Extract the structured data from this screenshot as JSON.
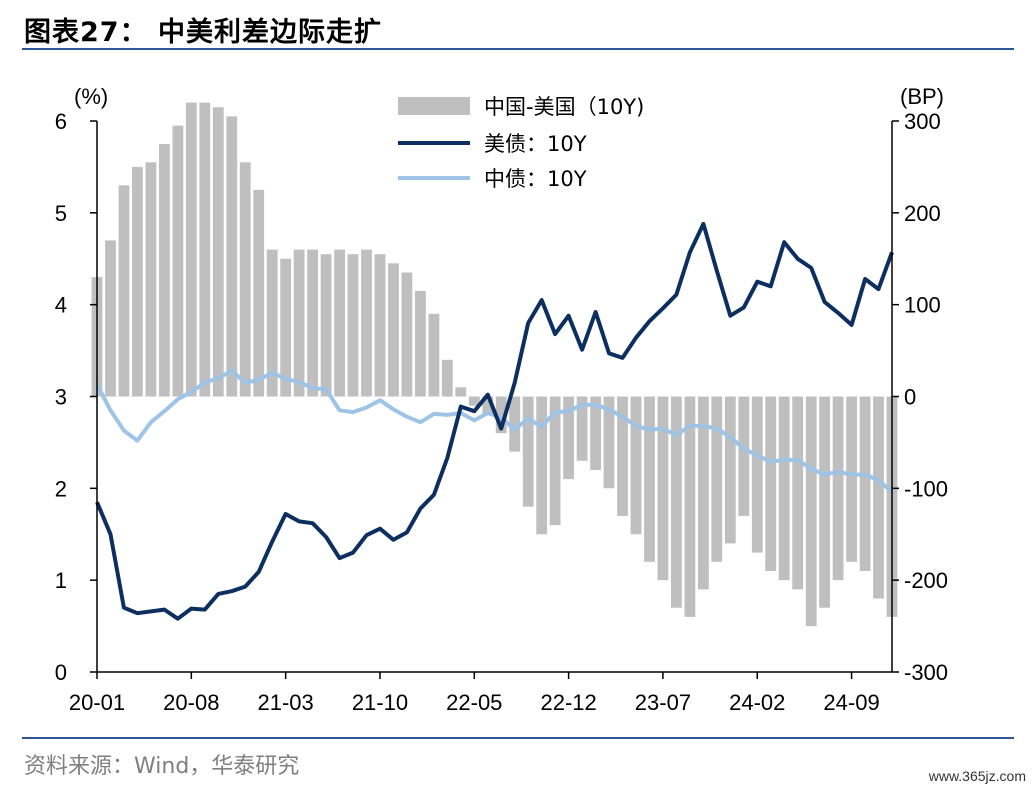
{
  "header": {
    "title": "图表27：   中美利差边际走扩"
  },
  "footer": {
    "source": "资料来源：Wind，华泰研究",
    "watermark": "www.365jz.com"
  },
  "chart_data": {
    "type": "line",
    "left_axis": {
      "label": "(%)",
      "ylim": [
        0,
        6
      ],
      "ticks": [
        "0",
        "1",
        "2",
        "3",
        "4",
        "5",
        "6"
      ]
    },
    "right_axis": {
      "label": "(BP)",
      "ylim": [
        -300,
        300
      ],
      "ticks": [
        "-300",
        "-200",
        "-100",
        "0",
        "100",
        "200",
        "300"
      ]
    },
    "x_ticks": [
      "20-01",
      "20-08",
      "21-03",
      "21-10",
      "22-05",
      "22-12",
      "23-07",
      "24-02",
      "24-09"
    ],
    "x_range": [
      "2020-01",
      "2024-12"
    ],
    "legend": {
      "position": "top-center",
      "entries": [
        "中国-美国（10Y)",
        "美债：10Y",
        "中债：10Y"
      ]
    },
    "colors": {
      "spread": "#bfbfbf",
      "us": "#0c2f5f",
      "cn": "#9dc3e6"
    },
    "months": [
      "2020-01",
      "2020-02",
      "2020-03",
      "2020-04",
      "2020-05",
      "2020-06",
      "2020-07",
      "2020-08",
      "2020-09",
      "2020-10",
      "2020-11",
      "2020-12",
      "2021-01",
      "2021-02",
      "2021-03",
      "2021-04",
      "2021-05",
      "2021-06",
      "2021-07",
      "2021-08",
      "2021-09",
      "2021-10",
      "2021-11",
      "2021-12",
      "2022-01",
      "2022-02",
      "2022-03",
      "2022-04",
      "2022-05",
      "2022-06",
      "2022-07",
      "2022-08",
      "2022-09",
      "2022-10",
      "2022-11",
      "2022-12",
      "2023-01",
      "2023-02",
      "2023-03",
      "2023-04",
      "2023-05",
      "2023-06",
      "2023-07",
      "2023-08",
      "2023-09",
      "2023-10",
      "2023-11",
      "2023-12",
      "2024-01",
      "2024-02",
      "2024-03",
      "2024-04",
      "2024-05",
      "2024-06",
      "2024-07",
      "2024-08",
      "2024-09",
      "2024-10",
      "2024-11",
      "2024-12"
    ],
    "series": [
      {
        "name": "中国-美国（10Y)",
        "axis": "right",
        "values": [
          130,
          170,
          230,
          250,
          255,
          275,
          295,
          320,
          320,
          315,
          305,
          255,
          225,
          160,
          150,
          160,
          160,
          155,
          160,
          155,
          160,
          155,
          145,
          135,
          115,
          90,
          40,
          10,
          -10,
          -20,
          -40,
          -60,
          -120,
          -150,
          -140,
          -90,
          -70,
          -80,
          -100,
          -130,
          -150,
          -180,
          -200,
          -230,
          -240,
          -210,
          -180,
          -160,
          -130,
          -170,
          -190,
          -200,
          -210,
          -250,
          -230,
          -200,
          -180,
          -190,
          -220,
          -240
        ]
      },
      {
        "name": "美债：10Y",
        "axis": "left",
        "values": [
          1.85,
          1.5,
          0.7,
          0.64,
          0.66,
          0.68,
          0.58,
          0.69,
          0.68,
          0.85,
          0.88,
          0.93,
          1.09,
          1.42,
          1.72,
          1.64,
          1.62,
          1.47,
          1.24,
          1.3,
          1.49,
          1.56,
          1.44,
          1.52,
          1.78,
          1.93,
          2.33,
          2.89,
          2.84,
          3.02,
          2.65,
          3.15,
          3.8,
          4.05,
          3.68,
          3.88,
          3.51,
          3.92,
          3.47,
          3.42,
          3.64,
          3.82,
          3.96,
          4.11,
          4.57,
          4.88,
          4.37,
          3.88,
          3.97,
          4.25,
          4.2,
          4.68,
          4.5,
          4.4,
          4.03,
          3.91,
          3.78,
          4.28,
          4.17,
          4.57
        ]
      },
      {
        "name": "中债：10Y",
        "axis": "left",
        "values": [
          3.13,
          2.85,
          2.63,
          2.52,
          2.72,
          2.84,
          2.97,
          3.05,
          3.15,
          3.2,
          3.28,
          3.15,
          3.18,
          3.26,
          3.19,
          3.16,
          3.09,
          3.08,
          2.85,
          2.83,
          2.88,
          2.96,
          2.86,
          2.78,
          2.72,
          2.81,
          2.8,
          2.82,
          2.74,
          2.82,
          2.77,
          2.64,
          2.76,
          2.67,
          2.83,
          2.84,
          2.91,
          2.91,
          2.86,
          2.78,
          2.68,
          2.64,
          2.65,
          2.58,
          2.68,
          2.68,
          2.65,
          2.56,
          2.43,
          2.36,
          2.29,
          2.31,
          2.31,
          2.21,
          2.15,
          2.18,
          2.15,
          2.15,
          2.09,
          1.96
        ]
      }
    ]
  }
}
